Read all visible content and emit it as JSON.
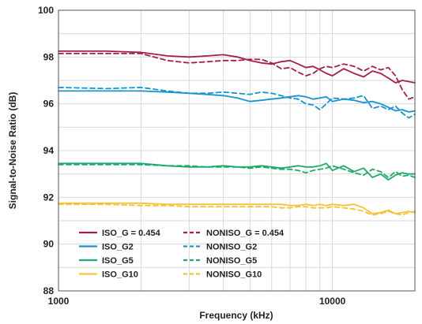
{
  "chart_data": {
    "type": "line",
    "xlabel": "Frequency (kHz)",
    "ylabel": "Signal-to-Noise Ratio (dB)",
    "xscale": "log",
    "xlim": [
      1000,
      20000
    ],
    "ylim": [
      88,
      100
    ],
    "x_tick_labels": [
      "1000",
      "10000"
    ],
    "y_ticks": [
      88,
      90,
      92,
      94,
      96,
      98,
      100
    ],
    "grid": true,
    "legend_position": "bottom-left",
    "series": [
      {
        "name": "ISO_G = 0.454",
        "color": "#a51e4c",
        "dash": "solid",
        "points": [
          [
            1000,
            98.25
          ],
          [
            1500,
            98.25
          ],
          [
            2000,
            98.2
          ],
          [
            2500,
            98.05
          ],
          [
            3000,
            98.0
          ],
          [
            3500,
            98.05
          ],
          [
            4000,
            98.1
          ],
          [
            4500,
            98.0
          ],
          [
            5000,
            97.85
          ],
          [
            5500,
            97.75
          ],
          [
            6000,
            97.7
          ],
          [
            6500,
            97.8
          ],
          [
            7000,
            97.85
          ],
          [
            7500,
            97.7
          ],
          [
            8000,
            97.55
          ],
          [
            8500,
            97.6
          ],
          [
            9000,
            97.45
          ],
          [
            9500,
            97.3
          ],
          [
            10000,
            97.2
          ],
          [
            11000,
            97.5
          ],
          [
            12000,
            97.3
          ],
          [
            13000,
            97.15
          ],
          [
            14000,
            97.4
          ],
          [
            15000,
            97.3
          ],
          [
            16000,
            97.1
          ],
          [
            17000,
            96.9
          ],
          [
            18000,
            97.0
          ],
          [
            19000,
            96.95
          ],
          [
            20000,
            96.9
          ]
        ]
      },
      {
        "name": "NONISO_G = 0.454",
        "color": "#a51e4c",
        "dash": "dashed",
        "points": [
          [
            1000,
            98.15
          ],
          [
            1500,
            98.15
          ],
          [
            2000,
            98.15
          ],
          [
            2500,
            97.85
          ],
          [
            3000,
            97.75
          ],
          [
            3500,
            97.8
          ],
          [
            4000,
            97.85
          ],
          [
            4500,
            97.85
          ],
          [
            5000,
            97.9
          ],
          [
            5500,
            97.9
          ],
          [
            6000,
            97.75
          ],
          [
            6500,
            97.5
          ],
          [
            7000,
            97.55
          ],
          [
            7500,
            97.35
          ],
          [
            8000,
            97.2
          ],
          [
            8500,
            97.3
          ],
          [
            9000,
            97.5
          ],
          [
            9500,
            97.6
          ],
          [
            10000,
            97.55
          ],
          [
            11000,
            97.7
          ],
          [
            12000,
            97.6
          ],
          [
            13000,
            97.4
          ],
          [
            14000,
            97.6
          ],
          [
            15000,
            97.45
          ],
          [
            16000,
            97.55
          ],
          [
            17000,
            97.2
          ],
          [
            18000,
            96.6
          ],
          [
            19000,
            96.2
          ],
          [
            20000,
            96.3
          ]
        ]
      },
      {
        "name": "ISO_G2",
        "color": "#1b93cf",
        "dash": "solid",
        "points": [
          [
            1000,
            96.55
          ],
          [
            1500,
            96.55
          ],
          [
            2000,
            96.55
          ],
          [
            2500,
            96.5
          ],
          [
            3000,
            96.45
          ],
          [
            3500,
            96.4
          ],
          [
            4000,
            96.35
          ],
          [
            4500,
            96.25
          ],
          [
            5000,
            96.1
          ],
          [
            5500,
            96.15
          ],
          [
            6000,
            96.2
          ],
          [
            6500,
            96.25
          ],
          [
            7000,
            96.3
          ],
          [
            7500,
            96.35
          ],
          [
            8000,
            96.3
          ],
          [
            8500,
            96.2
          ],
          [
            9000,
            96.25
          ],
          [
            9500,
            96.3
          ],
          [
            10000,
            96.1
          ],
          [
            11000,
            96.2
          ],
          [
            12000,
            96.15
          ],
          [
            13000,
            96.05
          ],
          [
            14000,
            96.1
          ],
          [
            15000,
            96.0
          ],
          [
            16000,
            95.85
          ],
          [
            17000,
            95.7
          ],
          [
            18000,
            95.75
          ],
          [
            19000,
            95.65
          ],
          [
            20000,
            95.7
          ]
        ]
      },
      {
        "name": "NONISO_G2",
        "color": "#1b93cf",
        "dash": "dashed",
        "points": [
          [
            1000,
            96.7
          ],
          [
            1500,
            96.65
          ],
          [
            2000,
            96.7
          ],
          [
            2500,
            96.55
          ],
          [
            3000,
            96.45
          ],
          [
            3500,
            96.45
          ],
          [
            4000,
            96.5
          ],
          [
            4500,
            96.45
          ],
          [
            5000,
            96.4
          ],
          [
            5500,
            96.5
          ],
          [
            6000,
            96.45
          ],
          [
            6500,
            96.35
          ],
          [
            7000,
            96.25
          ],
          [
            7500,
            96.2
          ],
          [
            8000,
            96.0
          ],
          [
            8500,
            95.95
          ],
          [
            9000,
            95.75
          ],
          [
            9500,
            96.0
          ],
          [
            10000,
            96.25
          ],
          [
            11000,
            96.2
          ],
          [
            12000,
            96.25
          ],
          [
            13000,
            96.35
          ],
          [
            14000,
            95.8
          ],
          [
            15000,
            95.9
          ],
          [
            16000,
            95.75
          ],
          [
            17000,
            95.9
          ],
          [
            18000,
            95.6
          ],
          [
            19000,
            95.4
          ],
          [
            20000,
            95.55
          ]
        ]
      },
      {
        "name": "ISO_G5",
        "color": "#1faa6a",
        "dash": "solid",
        "points": [
          [
            1000,
            93.45
          ],
          [
            1500,
            93.45
          ],
          [
            2000,
            93.45
          ],
          [
            2500,
            93.35
          ],
          [
            3000,
            93.3
          ],
          [
            3500,
            93.3
          ],
          [
            4000,
            93.35
          ],
          [
            4500,
            93.3
          ],
          [
            5000,
            93.3
          ],
          [
            5500,
            93.35
          ],
          [
            6000,
            93.3
          ],
          [
            6500,
            93.25
          ],
          [
            7000,
            93.3
          ],
          [
            7500,
            93.35
          ],
          [
            8000,
            93.3
          ],
          [
            8500,
            93.3
          ],
          [
            9000,
            93.35
          ],
          [
            9500,
            93.45
          ],
          [
            10000,
            93.15
          ],
          [
            11000,
            93.35
          ],
          [
            12000,
            93.1
          ],
          [
            13000,
            93.25
          ],
          [
            14000,
            92.85
          ],
          [
            15000,
            93.0
          ],
          [
            16000,
            92.75
          ],
          [
            17000,
            92.95
          ],
          [
            18000,
            93.05
          ],
          [
            19000,
            93.0
          ],
          [
            20000,
            93.0
          ]
        ]
      },
      {
        "name": "NONISO_G5",
        "color": "#1faa6a",
        "dash": "dashed",
        "points": [
          [
            1000,
            93.4
          ],
          [
            1500,
            93.4
          ],
          [
            2000,
            93.4
          ],
          [
            2500,
            93.35
          ],
          [
            3000,
            93.35
          ],
          [
            3500,
            93.3
          ],
          [
            4000,
            93.3
          ],
          [
            4500,
            93.3
          ],
          [
            5000,
            93.25
          ],
          [
            5500,
            93.3
          ],
          [
            6000,
            93.25
          ],
          [
            6500,
            93.2
          ],
          [
            7000,
            93.2
          ],
          [
            7500,
            93.15
          ],
          [
            8000,
            93.05
          ],
          [
            8500,
            93.15
          ],
          [
            9000,
            93.2
          ],
          [
            9500,
            93.25
          ],
          [
            10000,
            93.35
          ],
          [
            11000,
            93.2
          ],
          [
            12000,
            93.05
          ],
          [
            13000,
            92.95
          ],
          [
            14000,
            93.2
          ],
          [
            15000,
            93.1
          ],
          [
            16000,
            92.85
          ],
          [
            17000,
            93.1
          ],
          [
            18000,
            92.9
          ],
          [
            19000,
            92.95
          ],
          [
            20000,
            92.85
          ]
        ]
      },
      {
        "name": "ISO_G10",
        "color": "#f5c33b",
        "dash": "solid",
        "points": [
          [
            1000,
            91.75
          ],
          [
            1500,
            91.75
          ],
          [
            2000,
            91.75
          ],
          [
            2500,
            91.7
          ],
          [
            3000,
            91.7
          ],
          [
            3500,
            91.7
          ],
          [
            4000,
            91.7
          ],
          [
            4500,
            91.7
          ],
          [
            5000,
            91.7
          ],
          [
            5500,
            91.7
          ],
          [
            6000,
            91.7
          ],
          [
            6500,
            91.7
          ],
          [
            7000,
            91.65
          ],
          [
            7500,
            91.65
          ],
          [
            8000,
            91.7
          ],
          [
            8500,
            91.65
          ],
          [
            9000,
            91.7
          ],
          [
            9500,
            91.65
          ],
          [
            10000,
            91.7
          ],
          [
            11000,
            91.65
          ],
          [
            12000,
            91.7
          ],
          [
            13000,
            91.55
          ],
          [
            14000,
            91.3
          ],
          [
            15000,
            91.35
          ],
          [
            16000,
            91.45
          ],
          [
            17000,
            91.3
          ],
          [
            18000,
            91.35
          ],
          [
            19000,
            91.4
          ],
          [
            20000,
            91.35
          ]
        ]
      },
      {
        "name": "NONISO_G10",
        "color": "#f5c33b",
        "dash": "dashed",
        "points": [
          [
            1000,
            91.7
          ],
          [
            1500,
            91.7
          ],
          [
            2000,
            91.65
          ],
          [
            2500,
            91.65
          ],
          [
            3000,
            91.6
          ],
          [
            3500,
            91.6
          ],
          [
            4000,
            91.6
          ],
          [
            4500,
            91.6
          ],
          [
            5000,
            91.6
          ],
          [
            5500,
            91.6
          ],
          [
            6000,
            91.6
          ],
          [
            6500,
            91.55
          ],
          [
            7000,
            91.55
          ],
          [
            7500,
            91.6
          ],
          [
            8000,
            91.6
          ],
          [
            8500,
            91.55
          ],
          [
            9000,
            91.55
          ],
          [
            9500,
            91.55
          ],
          [
            10000,
            91.6
          ],
          [
            11000,
            91.55
          ],
          [
            12000,
            91.5
          ],
          [
            13000,
            91.4
          ],
          [
            14000,
            91.25
          ],
          [
            15000,
            91.3
          ],
          [
            16000,
            91.4
          ],
          [
            17000,
            91.3
          ],
          [
            18000,
            91.25
          ],
          [
            19000,
            91.35
          ],
          [
            20000,
            91.4
          ]
        ]
      }
    ]
  }
}
